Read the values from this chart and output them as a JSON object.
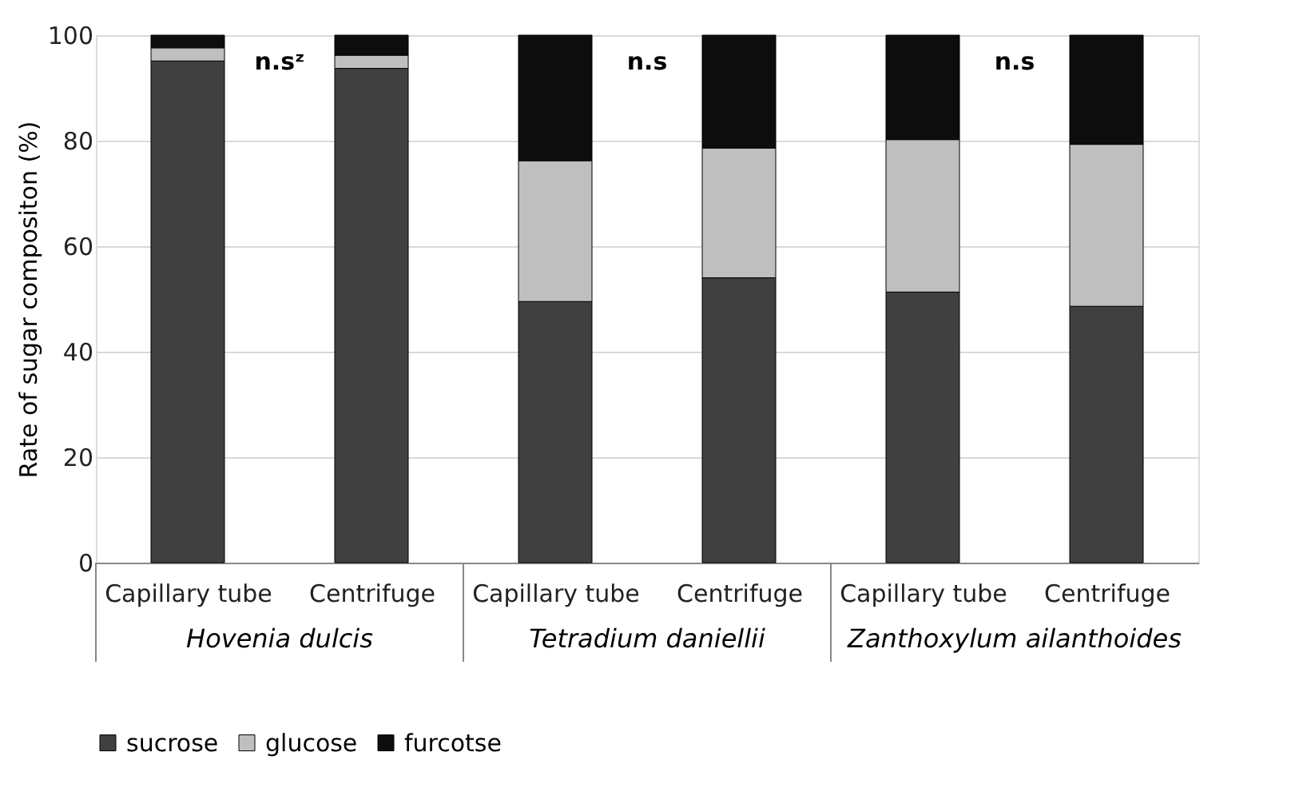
{
  "chart_data": {
    "type": "bar",
    "stacked": true,
    "ylabel": "Rate of sugar compositon (%)",
    "categories": [
      "Capillary tube",
      "Centrifuge",
      "Capillary tube",
      "Centrifuge",
      "Capillary tube",
      "Centrifuge"
    ],
    "series": [
      {
        "name": "sucrose",
        "color": "#404040",
        "values": [
          95.1,
          93.7,
          49.5,
          54.0,
          51.3,
          48.6
        ]
      },
      {
        "name": "glucose",
        "color": "#bfbfbf",
        "values": [
          2.5,
          2.5,
          26.7,
          24.6,
          28.9,
          30.7
        ]
      },
      {
        "name": "furcotse",
        "color": "#0d0d0d",
        "values": [
          2.4,
          3.8,
          23.8,
          21.4,
          19.8,
          20.7
        ]
      }
    ],
    "ylim": [
      0,
      100
    ],
    "yticks": [
      0,
      20,
      40,
      60,
      80,
      100
    ],
    "grid": "y",
    "legend": "bottom",
    "annotations": [
      "n.sᶻ",
      "n.s",
      "n.s",
      "Hovenia dulcis",
      "Tetradium daniellii",
      "Zanthoxylum ailanthoides"
    ]
  }
}
